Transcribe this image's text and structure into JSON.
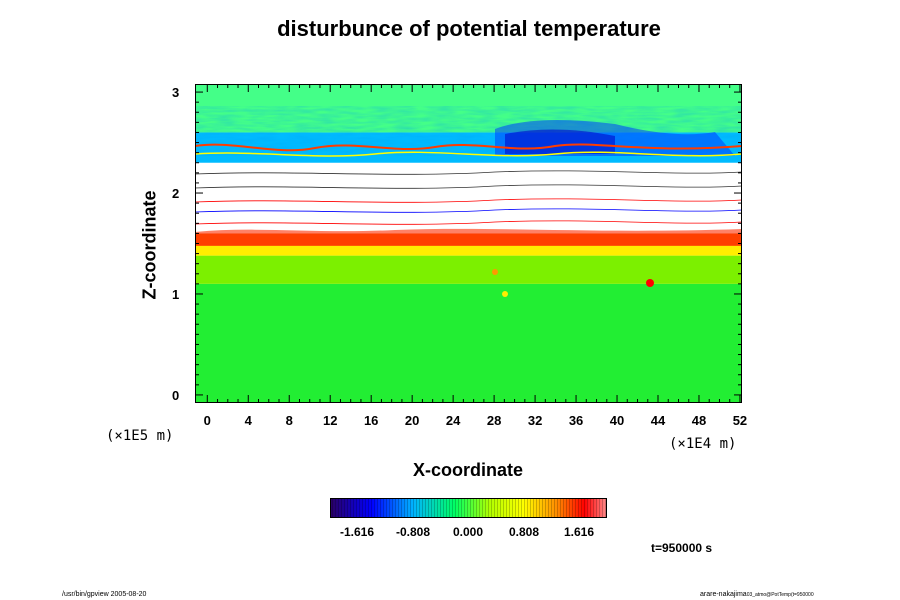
{
  "chart_data": {
    "type": "heatmap",
    "title": "disturbunce of potential temperature",
    "xlabel": "X-coordinate",
    "ylabel": "Z-coordinate",
    "x_unit": "(×1E4 m)",
    "y_unit": "(×1E5 m)",
    "xlim": [
      -1.2,
      52.2
    ],
    "ylim": [
      -0.08,
      3.08
    ],
    "x_ticks": [
      "0",
      "4",
      "8",
      "12",
      "16",
      "20",
      "24",
      "28",
      "32",
      "36",
      "40",
      "44",
      "48",
      "52"
    ],
    "y_ticks": [
      "0",
      "1",
      "2",
      "3"
    ],
    "colorbar": {
      "ticks": [
        "-1.616",
        "-0.808",
        "0.000",
        "0.808",
        "1.616"
      ],
      "colors": [
        "#2a0064",
        "#0000ff",
        "#00b4ff",
        "#00ff64",
        "#b4ff00",
        "#ffff00",
        "#ff8c00",
        "#ff0000",
        "#ff8c8c"
      ]
    },
    "annotation": "t=950000 s",
    "layers": [
      {
        "z_range": [
          0,
          1.1
        ],
        "level": "≈0.0",
        "color": "#22ee33"
      },
      {
        "z_range": [
          1.1,
          1.38
        ],
        "level": "≈0.3",
        "color": "#7cf000"
      },
      {
        "z_range": [
          1.38,
          1.48
        ],
        "level": "≈0.7",
        "color": "#ffee00"
      },
      {
        "z_range": [
          1.48,
          1.6
        ],
        "level": "≈1.4",
        "color": "#ff5a00"
      },
      {
        "z_range": [
          1.6,
          2.3
        ],
        "level": "out of range",
        "color": "#ffffff"
      },
      {
        "z_range": [
          2.3,
          2.6
        ],
        "level": "≈-0.6",
        "color": "#00bbff"
      },
      {
        "z_range": [
          2.6,
          2.95
        ],
        "level": "≈0.2",
        "color": "#44ff88"
      }
    ]
  },
  "footer": {
    "left": "/usr/bin/gpview 2005-08-20",
    "right": "arare-nakajima",
    "right_sub": "03_atmo@PotTemp(t=950000"
  }
}
